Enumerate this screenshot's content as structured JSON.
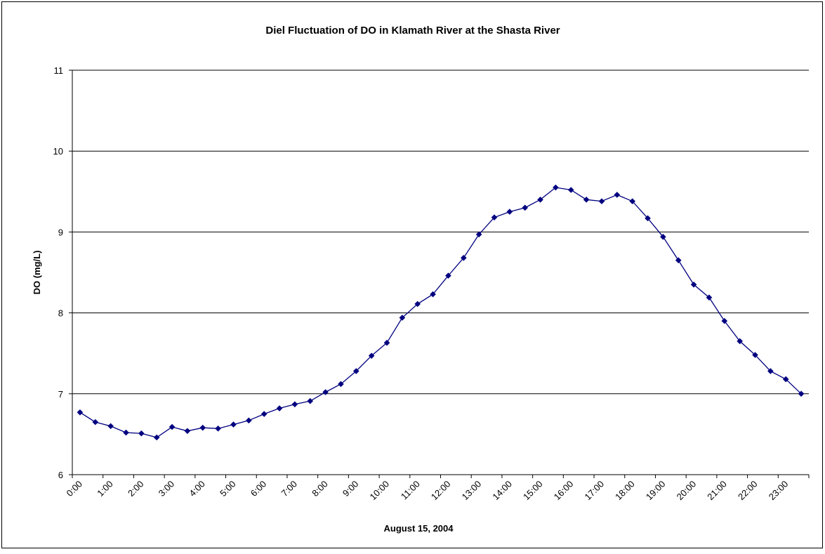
{
  "chart_data": {
    "type": "line",
    "title": "Diel Fluctuation of DO in Klamath River at the Shasta River",
    "x_label": "August 15, 2004",
    "y_label": "DO (mg/L)",
    "categories": [
      "0:00",
      null,
      "1:00",
      null,
      "2:00",
      null,
      "3:00",
      null,
      "4:00",
      null,
      "5:00",
      null,
      "6:00",
      null,
      "7:00",
      null,
      "8:00",
      null,
      "9:00",
      null,
      "10:00",
      null,
      "11:00",
      null,
      "12:00",
      null,
      "13:00",
      null,
      "14:00",
      null,
      "15:00",
      null,
      "16:00",
      null,
      "17:00",
      null,
      "18:00",
      null,
      "19:00",
      null,
      "20:00",
      null,
      "21:00",
      null,
      "22:00",
      null,
      "23:00",
      null
    ],
    "series": [
      {
        "name": "DO",
        "color": "#000080",
        "values": [
          6.77,
          6.65,
          6.6,
          6.52,
          6.51,
          6.46,
          6.59,
          6.54,
          6.58,
          6.57,
          6.62,
          6.67,
          6.75,
          6.82,
          6.87,
          6.91,
          7.02,
          7.12,
          7.28,
          7.47,
          7.63,
          7.94,
          8.11,
          8.23,
          8.46,
          8.68,
          8.97,
          9.18,
          9.25,
          9.3,
          9.4,
          9.55,
          9.52,
          9.4,
          9.38,
          9.46,
          9.38,
          9.17,
          8.94,
          8.65,
          8.35,
          8.19,
          7.9,
          7.65,
          7.48,
          7.28,
          7.18,
          7.0
        ]
      }
    ],
    "ylim": [
      6,
      11
    ],
    "yticks": [
      6,
      7,
      8,
      9,
      10,
      11
    ],
    "grid": true
  }
}
